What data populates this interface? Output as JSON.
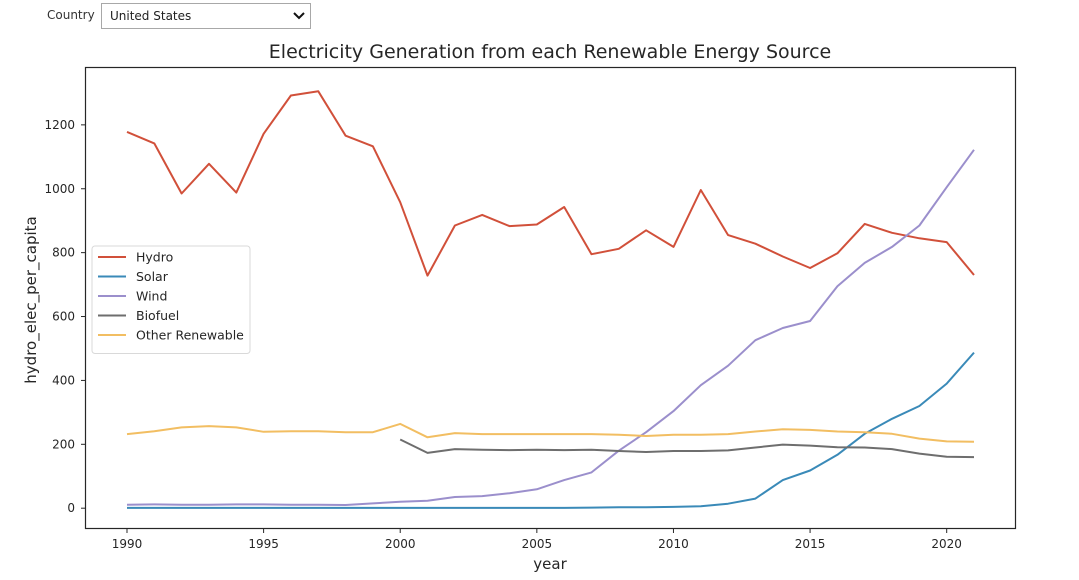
{
  "filter": {
    "label": "Country",
    "selected": "United States"
  },
  "chart_data": {
    "type": "line",
    "title": "Electricity Generation from each Renewable Energy Source",
    "xlabel": "year",
    "ylabel": "hydro_elec_per_capita",
    "xlim": [
      1988.5,
      2022.5
    ],
    "ylim": [
      -62,
      1378
    ],
    "xticks": [
      1990,
      1995,
      2000,
      2005,
      2010,
      2015,
      2020
    ],
    "yticks": [
      0,
      200,
      400,
      600,
      800,
      1000,
      1200
    ],
    "grid": false,
    "legend_position": "center-left",
    "series": [
      {
        "name": "Hydro",
        "color": "#d1503a",
        "x": [
          1990,
          1991,
          1992,
          1993,
          1994,
          1995,
          1996,
          1997,
          1998,
          1999,
          2000,
          2001,
          2002,
          2003,
          2004,
          2005,
          2006,
          2007,
          2008,
          2009,
          2010,
          2011,
          2012,
          2013,
          2014,
          2015,
          2016,
          2017,
          2018,
          2019,
          2020,
          2021
        ],
        "y": [
          1178,
          1142,
          985,
          1078,
          988,
          1172,
          1292,
          1305,
          1166,
          1133,
          958,
          728,
          885,
          918,
          883,
          888,
          943,
          795,
          812,
          870,
          818,
          996,
          855,
          828,
          788,
          752,
          798,
          890,
          862,
          845,
          833,
          730
        ]
      },
      {
        "name": "Solar",
        "color": "#3a8ab8",
        "x": [
          1990,
          1991,
          1992,
          1993,
          1994,
          1995,
          1996,
          1997,
          1998,
          1999,
          2000,
          2001,
          2002,
          2003,
          2004,
          2005,
          2006,
          2007,
          2008,
          2009,
          2010,
          2011,
          2012,
          2013,
          2014,
          2015,
          2016,
          2017,
          2018,
          2019,
          2020,
          2021
        ],
        "y": [
          1,
          1,
          1,
          1,
          1,
          1,
          1,
          1,
          1,
          1,
          1,
          1,
          1,
          1,
          1,
          1,
          1,
          2,
          3,
          3,
          4,
          6,
          14,
          30,
          88,
          118,
          167,
          233,
          280,
          320,
          390,
          487
        ]
      },
      {
        "name": "Wind",
        "color": "#9b8fcc",
        "x": [
          1990,
          1991,
          1992,
          1993,
          1994,
          1995,
          1996,
          1997,
          1998,
          1999,
          2000,
          2001,
          2002,
          2003,
          2004,
          2005,
          2006,
          2007,
          2008,
          2009,
          2010,
          2011,
          2012,
          2013,
          2014,
          2015,
          2016,
          2017,
          2018,
          2019,
          2020,
          2021
        ],
        "y": [
          11,
          12,
          11,
          11,
          12,
          12,
          11,
          11,
          10,
          15,
          20,
          23,
          35,
          38,
          47,
          59,
          88,
          112,
          180,
          238,
          304,
          385,
          446,
          526,
          564,
          586,
          695,
          768,
          818,
          885,
          1005,
          1122
        ]
      },
      {
        "name": "Biofuel",
        "color": "#6e6e6e",
        "x": [
          2000,
          2001,
          2002,
          2003,
          2004,
          2005,
          2006,
          2007,
          2008,
          2009,
          2010,
          2011,
          2012,
          2013,
          2014,
          2015,
          2016,
          2017,
          2018,
          2019,
          2020,
          2021
        ],
        "y": [
          215,
          173,
          185,
          183,
          182,
          183,
          182,
          183,
          179,
          176,
          179,
          179,
          181,
          190,
          199,
          196,
          191,
          190,
          185,
          171,
          161,
          160
        ]
      },
      {
        "name": "Other Renewable",
        "color": "#f2be62",
        "x": [
          1990,
          1991,
          1992,
          1993,
          1994,
          1995,
          1996,
          1997,
          1998,
          1999,
          2000,
          2001,
          2002,
          2003,
          2004,
          2005,
          2006,
          2007,
          2008,
          2009,
          2010,
          2011,
          2012,
          2013,
          2014,
          2015,
          2016,
          2017,
          2018,
          2019,
          2020,
          2021
        ],
        "y": [
          232,
          241,
          253,
          257,
          253,
          239,
          241,
          241,
          238,
          238,
          264,
          222,
          235,
          232,
          232,
          232,
          232,
          232,
          230,
          226,
          230,
          230,
          232,
          240,
          247,
          245,
          240,
          238,
          233,
          218,
          209,
          208
        ]
      }
    ]
  }
}
